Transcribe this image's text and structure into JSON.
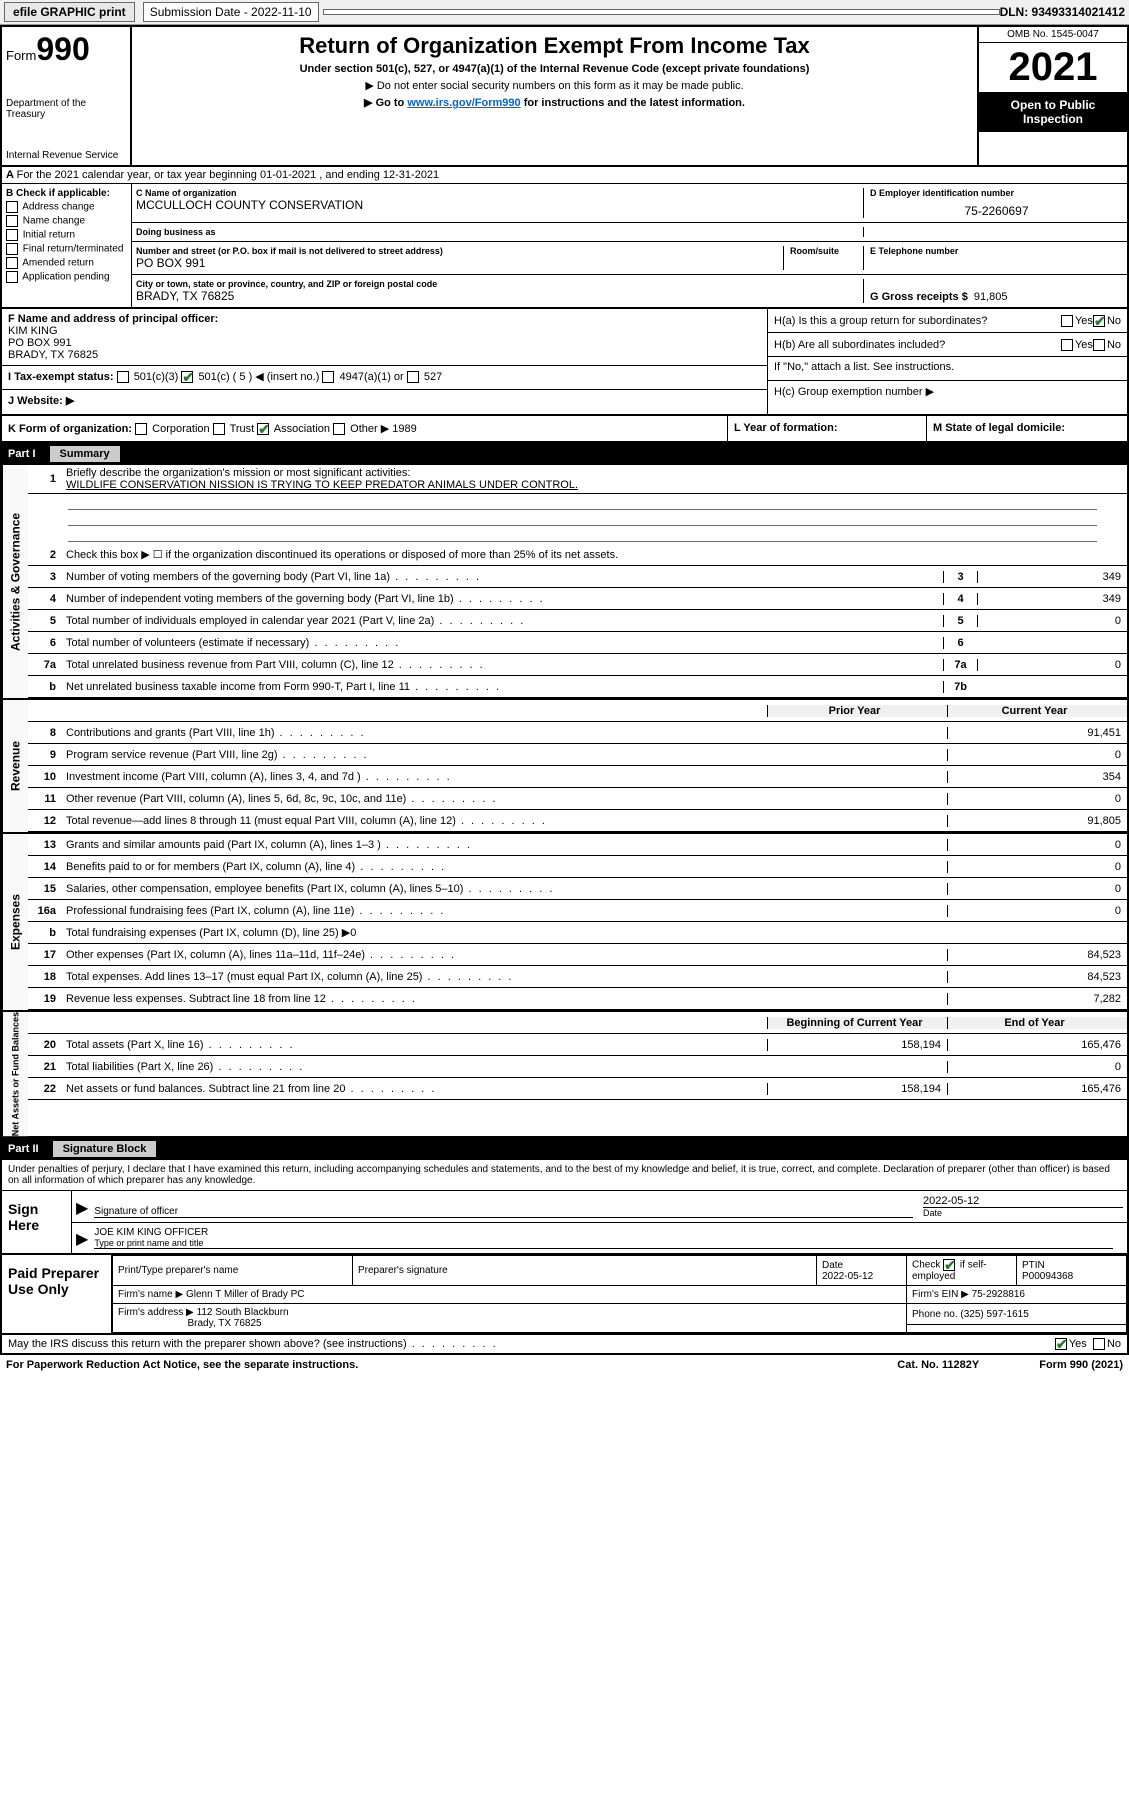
{
  "topbar": {
    "efile_label": "efile GRAPHIC print",
    "submission_label": "Submission Date - 2022-11-10",
    "dln": "DLN: 93493314021412"
  },
  "header": {
    "form_prefix": "Form",
    "form_number": "990",
    "dept": "Department of the Treasury",
    "irs": "Internal Revenue Service",
    "title": "Return of Organization Exempt From Income Tax",
    "sub1": "Under section 501(c), 527, or 4947(a)(1) of the Internal Revenue Code (except private foundations)",
    "sub2": "▶ Do not enter social security numbers on this form as it may be made public.",
    "sub3_pre": "▶ Go to ",
    "sub3_link": "www.irs.gov/Form990",
    "sub3_post": " for instructions and the latest information.",
    "omb": "OMB No. 1545-0047",
    "year": "2021",
    "open": "Open to Public Inspection"
  },
  "section_a": "For the 2021 calendar year, or tax year beginning 01-01-2021   , and ending 12-31-2021",
  "block_b": {
    "label": "B Check if applicable:",
    "items": [
      "Address change",
      "Name change",
      "Initial return",
      "Final return/terminated",
      "Amended return",
      "Application pending"
    ]
  },
  "block_c": {
    "name_label": "C Name of organization",
    "name": "MCCULLOCH COUNTY CONSERVATION",
    "dba_label": "Doing business as",
    "dba": "",
    "addr_label": "Number and street (or P.O. box if mail is not delivered to street address)",
    "room_label": "Room/suite",
    "addr": "PO BOX 991",
    "city_label": "City or town, state or province, country, and ZIP or foreign postal code",
    "city": "BRADY, TX  76825",
    "ein_label": "D Employer identification number",
    "ein": "75-2260697",
    "phone_label": "E Telephone number",
    "phone": "",
    "gross_label": "G Gross receipts $",
    "gross": "91,805"
  },
  "block_f": {
    "label": "F  Name and address of principal officer:",
    "name": "KIM KING",
    "addr1": "PO BOX 991",
    "addr2": "BRADY, TX  76825"
  },
  "block_h": {
    "ha": "H(a)  Is this a group return for subordinates?",
    "hb": "H(b)  Are all subordinates included?",
    "hb_note": "If \"No,\" attach a list. See instructions.",
    "hc": "H(c)  Group exemption number ▶",
    "yes": "Yes",
    "no": "No"
  },
  "block_i": {
    "label": "I    Tax-exempt status:",
    "opt1": "501(c)(3)",
    "opt2": "501(c) ( 5 ) ◀ (insert no.)",
    "opt3": "4947(a)(1) or",
    "opt4": "527"
  },
  "block_j": {
    "label": "J    Website: ▶"
  },
  "block_k": {
    "label": "K Form of organization:",
    "opts": [
      "Corporation",
      "Trust",
      "Association",
      "Other ▶ 1989"
    ],
    "l_label": "L Year of formation:",
    "m_label": "M State of legal domicile:"
  },
  "part1": {
    "num": "Part I",
    "title": "Summary"
  },
  "part2": {
    "num": "Part II",
    "title": "Signature Block"
  },
  "mission": {
    "num": "1",
    "label": "Briefly describe the organization's mission or most significant activities:",
    "text": "WILDLIFE CONSERVATION NISSION IS TRYING TO KEEP PREDATOR ANIMALS UNDER CONTROL."
  },
  "governance_rows": [
    {
      "num": "2",
      "desc": "Check this box ▶ ☐  if the organization discontinued its operations or disposed of more than 25% of its net assets."
    },
    {
      "num": "3",
      "desc": "Number of voting members of the governing body (Part VI, line 1a)",
      "ans_num": "3",
      "ans_val": "349"
    },
    {
      "num": "4",
      "desc": "Number of independent voting members of the governing body (Part VI, line 1b)",
      "ans_num": "4",
      "ans_val": "349"
    },
    {
      "num": "5",
      "desc": "Total number of individuals employed in calendar year 2021 (Part V, line 2a)",
      "ans_num": "5",
      "ans_val": "0"
    },
    {
      "num": "6",
      "desc": "Total number of volunteers (estimate if necessary)",
      "ans_num": "6",
      "ans_val": ""
    },
    {
      "num": "7a",
      "desc": "Total unrelated business revenue from Part VIII, column (C), line 12",
      "ans_num": "7a",
      "ans_val": "0"
    },
    {
      "num": "b",
      "desc": "Net unrelated business taxable income from Form 990-T, Part I, line 11",
      "ans_num": "7b",
      "ans_val": ""
    }
  ],
  "revenue_header": {
    "prior": "Prior Year",
    "curr": "Current Year"
  },
  "revenue_rows": [
    {
      "num": "8",
      "desc": "Contributions and grants (Part VIII, line 1h)",
      "prior": "",
      "curr": "91,451"
    },
    {
      "num": "9",
      "desc": "Program service revenue (Part VIII, line 2g)",
      "prior": "",
      "curr": "0"
    },
    {
      "num": "10",
      "desc": "Investment income (Part VIII, column (A), lines 3, 4, and 7d )",
      "prior": "",
      "curr": "354"
    },
    {
      "num": "11",
      "desc": "Other revenue (Part VIII, column (A), lines 5, 6d, 8c, 9c, 10c, and 11e)",
      "prior": "",
      "curr": "0"
    },
    {
      "num": "12",
      "desc": "Total revenue—add lines 8 through 11 (must equal Part VIII, column (A), line 12)",
      "prior": "",
      "curr": "91,805"
    }
  ],
  "expense_rows": [
    {
      "num": "13",
      "desc": "Grants and similar amounts paid (Part IX, column (A), lines 1–3 )",
      "prior": "",
      "curr": "0"
    },
    {
      "num": "14",
      "desc": "Benefits paid to or for members (Part IX, column (A), line 4)",
      "prior": "",
      "curr": "0"
    },
    {
      "num": "15",
      "desc": "Salaries, other compensation, employee benefits (Part IX, column (A), lines 5–10)",
      "prior": "",
      "curr": "0"
    },
    {
      "num": "16a",
      "desc": "Professional fundraising fees (Part IX, column (A), line 11e)",
      "prior": "",
      "curr": "0"
    },
    {
      "num": "b",
      "desc": "Total fundraising expenses (Part IX, column (D), line 25) ▶0",
      "shaded": true
    },
    {
      "num": "17",
      "desc": "Other expenses (Part IX, column (A), lines 11a–11d, 11f–24e)",
      "prior": "",
      "curr": "84,523"
    },
    {
      "num": "18",
      "desc": "Total expenses. Add lines 13–17 (must equal Part IX, column (A), line 25)",
      "prior": "",
      "curr": "84,523"
    },
    {
      "num": "19",
      "desc": "Revenue less expenses. Subtract line 18 from line 12",
      "prior": "",
      "curr": "7,282"
    }
  ],
  "net_header": {
    "prior": "Beginning of Current Year",
    "curr": "End of Year"
  },
  "net_rows": [
    {
      "num": "20",
      "desc": "Total assets (Part X, line 16)",
      "prior": "158,194",
      "curr": "165,476"
    },
    {
      "num": "21",
      "desc": "Total liabilities (Part X, line 26)",
      "prior": "",
      "curr": "0"
    },
    {
      "num": "22",
      "desc": "Net assets or fund balances. Subtract line 21 from line 20",
      "prior": "158,194",
      "curr": "165,476"
    }
  ],
  "vert_labels": {
    "gov": "Activities & Governance",
    "rev": "Revenue",
    "exp": "Expenses",
    "net": "Net Assets or Fund Balances"
  },
  "sig": {
    "penalty": "Under penalties of perjury, I declare that I have examined this return, including accompanying schedules and statements, and to the best of my knowledge and belief, it is true, correct, and complete. Declaration of preparer (other than officer) is based on all information of which preparer has any knowledge.",
    "sign_here": "Sign Here",
    "sig_officer": "Signature of officer",
    "date_label": "Date",
    "date": "2022-05-12",
    "name_title": "JOE KIM KING OFFICER",
    "type_label": "Type or print name and title"
  },
  "prep": {
    "label": "Paid Preparer Use Only",
    "print_name": "Print/Type preparer's name",
    "prep_sig": "Preparer's signature",
    "date_label": "Date",
    "date": "2022-05-12",
    "check_label": "Check",
    "self_emp": "if self-employed",
    "ptin_label": "PTIN",
    "ptin": "P00094368",
    "firm_name_label": "Firm's name    ▶",
    "firm_name": "Glenn T Miller of Brady PC",
    "firm_ein_label": "Firm's EIN ▶",
    "firm_ein": "75-2928816",
    "firm_addr_label": "Firm's address ▶",
    "firm_addr1": "112 South Blackburn",
    "firm_addr2": "Brady, TX  76825",
    "phone_label": "Phone no.",
    "phone": "(325) 597-1615"
  },
  "footer": {
    "discuss": "May the IRS discuss this return with the preparer shown above? (see instructions)",
    "yes": "Yes",
    "no": "No",
    "paperwork": "For Paperwork Reduction Act Notice, see the separate instructions.",
    "cat": "Cat. No. 11282Y",
    "form": "Form 990 (2021)"
  }
}
